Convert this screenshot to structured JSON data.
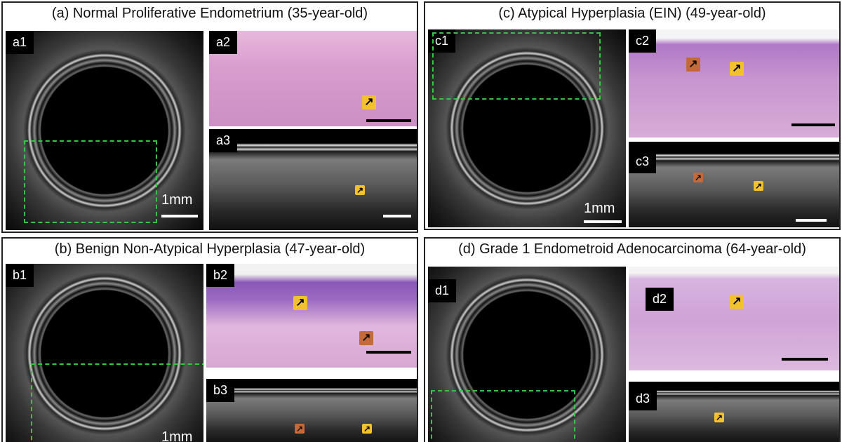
{
  "panels": {
    "a": {
      "title": "(a) Normal Proliferative Endometrium (35-year-old)",
      "sub1": "a1",
      "sub2": "a2",
      "sub3": "a3",
      "scale": "1mm"
    },
    "b": {
      "title": "(b) Benign Non-Atypical Hyperplasia (47-year-old)",
      "sub1": "b1",
      "sub2": "b2",
      "sub3": "b3",
      "scale": "1mm"
    },
    "c": {
      "title": "(c) Atypical Hyperplasia (EIN) (49-year-old)",
      "sub1": "c1",
      "sub2": "c2",
      "sub3": "c3",
      "scale": "1mm"
    },
    "d": {
      "title": "(d) Grade 1 Endometroid Adenocarcinoma (64-year-old)",
      "sub1": "d1",
      "sub2": "d2",
      "sub3": "d3"
    }
  },
  "colors": {
    "roi_box": "#38c24a",
    "arrow_yellow": "#f2c12e",
    "arrow_orange": "#c46a3a"
  },
  "icons": {
    "arrow": "arrow-north-east-icon"
  }
}
